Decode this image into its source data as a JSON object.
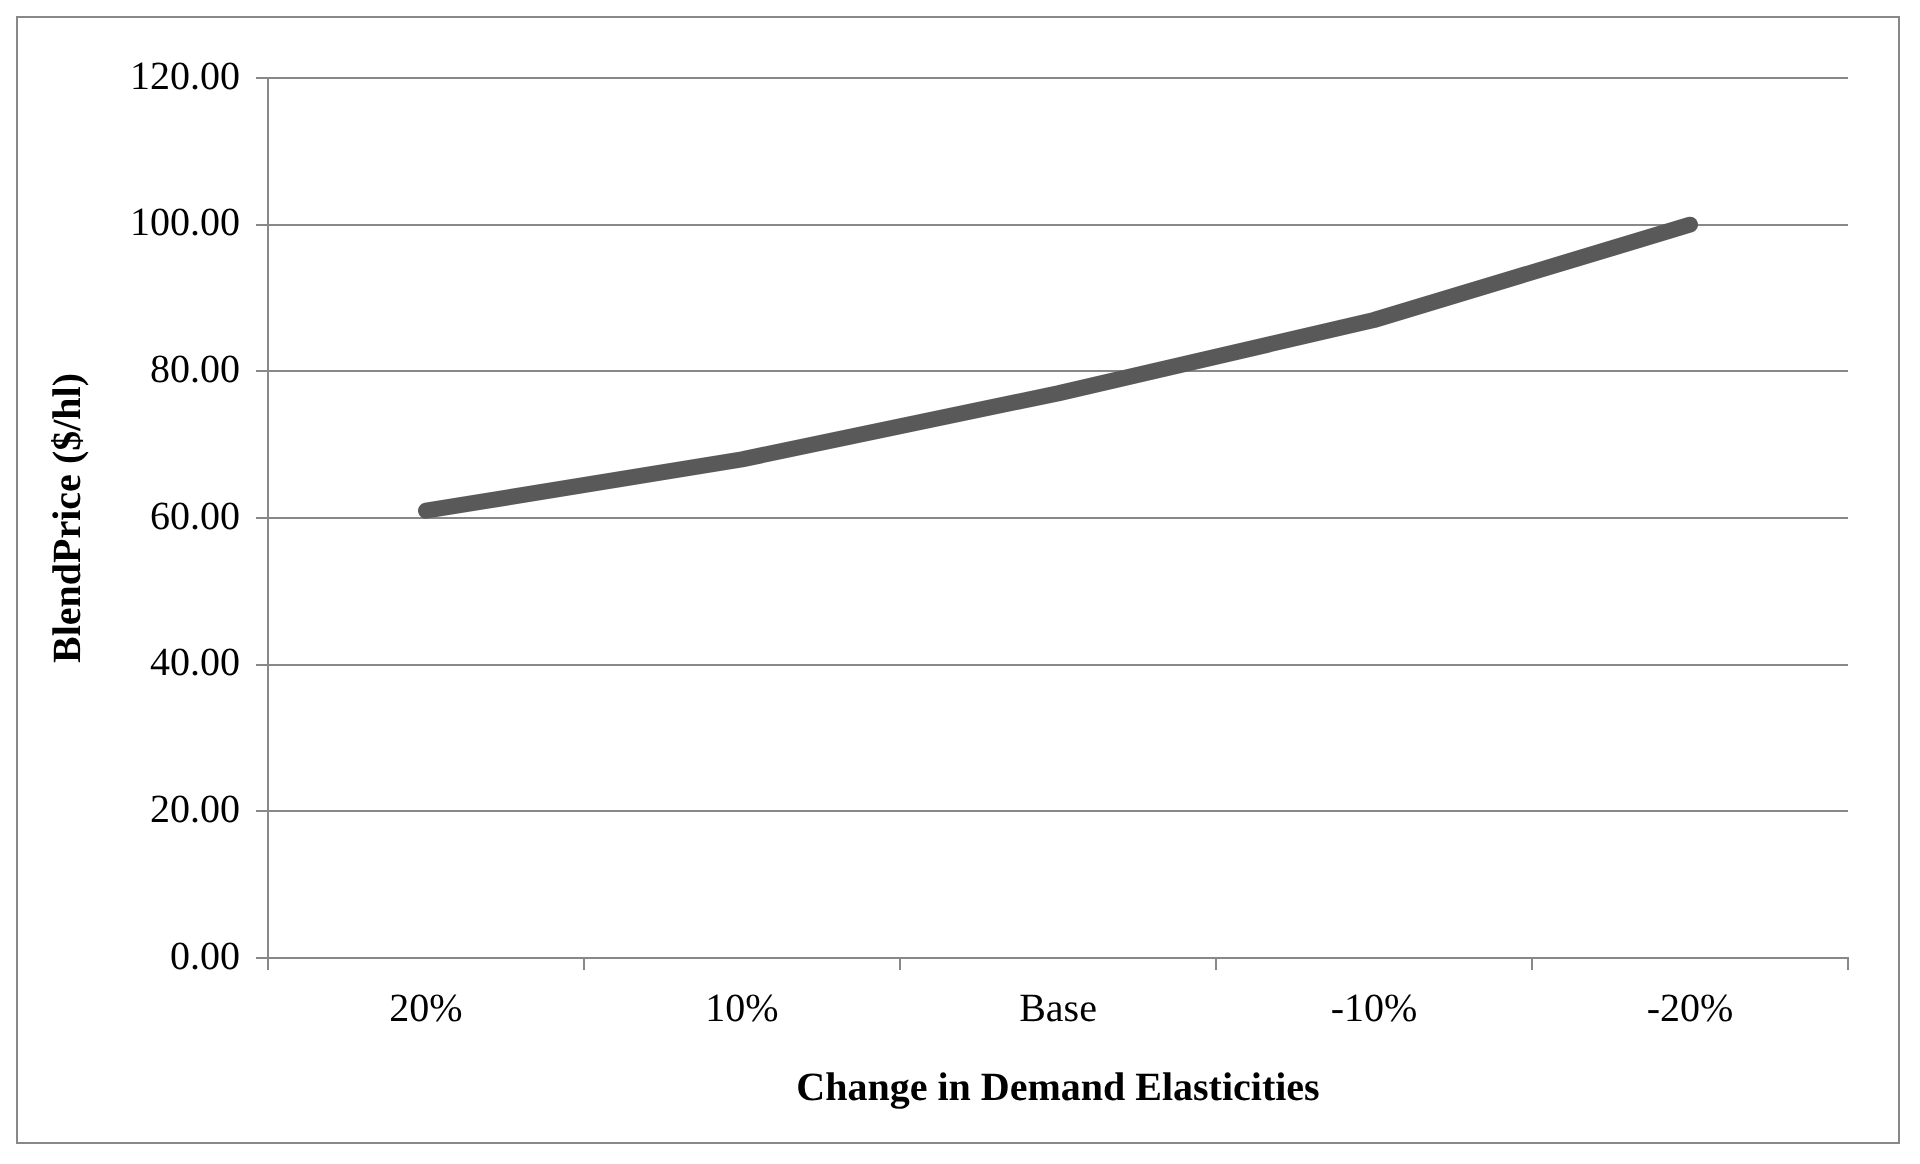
{
  "chart_data": {
    "type": "line",
    "xlabel": "Change in Demand Elasticities",
    "ylabel": "BlendPrice ($/hl)",
    "categories": [
      "20%",
      "10%",
      "Base",
      "-10%",
      "-20%"
    ],
    "series": [
      {
        "color": "#595959",
        "values": [
          61,
          68,
          77,
          87,
          100
        ]
      }
    ],
    "ylim": [
      0,
      120
    ],
    "yticks": [
      {
        "value": 0,
        "label": "0.00"
      },
      {
        "value": 20,
        "label": "20.00"
      },
      {
        "value": 40,
        "label": "40.00"
      },
      {
        "value": 60,
        "label": "60.00"
      },
      {
        "value": 80,
        "label": "80.00"
      },
      {
        "value": 100,
        "label": "100.00"
      },
      {
        "value": 120,
        "label": "120.00"
      }
    ],
    "grid": "y",
    "legend": false,
    "marker": "none",
    "line_style": "solid"
  }
}
